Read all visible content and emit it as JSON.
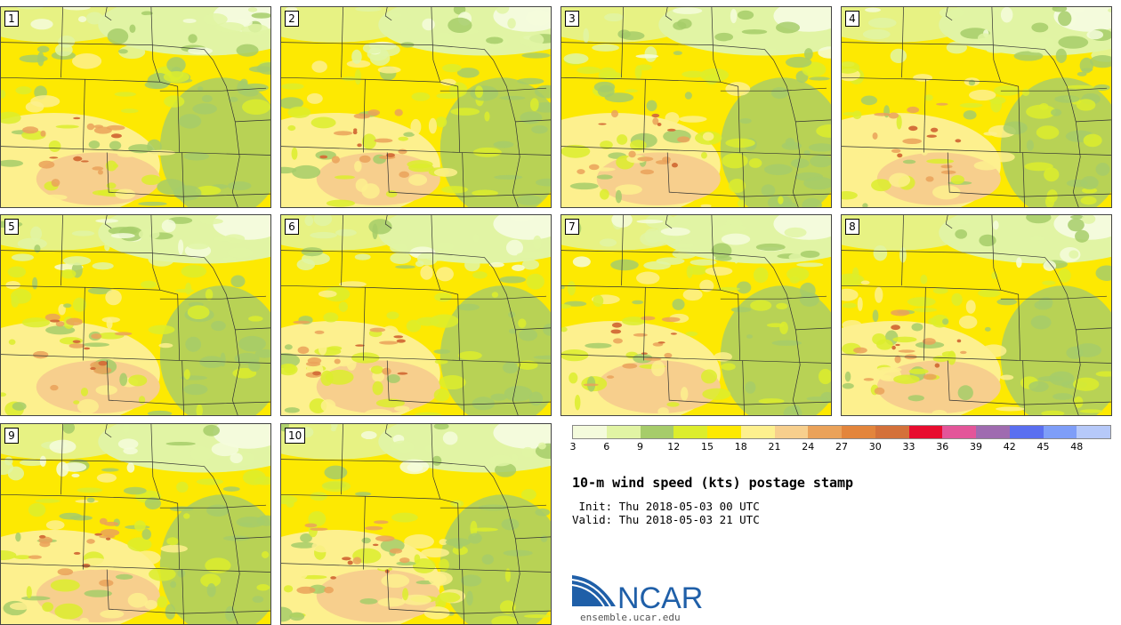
{
  "panels": [
    "1",
    "2",
    "3",
    "4",
    "5",
    "6",
    "7",
    "8",
    "9",
    "10"
  ],
  "legend": {
    "colors": [
      "#f4fbdc",
      "#e1f4a4",
      "#a6cc6a",
      "#dced2d",
      "#fde902",
      "#fdf08e",
      "#f7cf8d",
      "#eaa25a",
      "#e3853c",
      "#d4713a",
      "#e80c2f",
      "#e35599",
      "#9f6bb0",
      "#5a6ff0",
      "#7e9ef8",
      "#b6c9f9"
    ],
    "ticks": [
      "3",
      "6",
      "9",
      "12",
      "15",
      "18",
      "21",
      "24",
      "27",
      "30",
      "33",
      "36",
      "39",
      "42",
      "45",
      "48"
    ]
  },
  "title": "10-m wind speed (kts) postage stamp",
  "init_line": " Init: Thu 2018-05-03 00 UTC",
  "valid_line": "Valid: Thu 2018-05-03 21 UTC",
  "logo": {
    "text": "NCAR",
    "url": "ensemble.ucar.edu",
    "brand_color": "#1f5fa8"
  }
}
